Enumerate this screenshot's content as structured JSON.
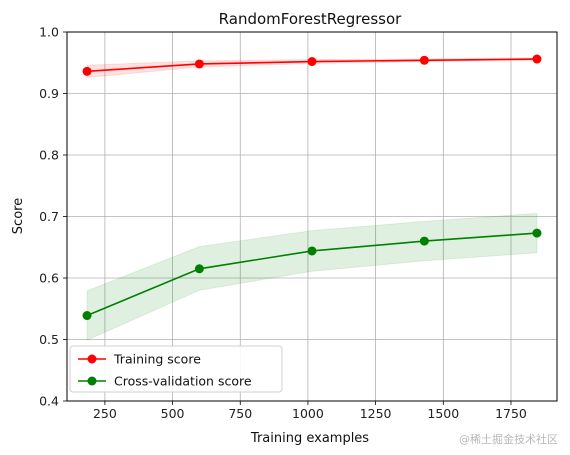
{
  "chart_data": {
    "type": "line",
    "title": "RandomForestRegressor",
    "xlabel": "Training examples",
    "ylabel": "Score",
    "xlim": [
      110,
      1920
    ],
    "ylim": [
      0.4,
      1.0
    ],
    "xticks": [
      250,
      500,
      750,
      1000,
      1250,
      1500,
      1750
    ],
    "yticks": [
      0.4,
      0.5,
      0.6,
      0.7,
      0.8,
      0.9,
      1.0
    ],
    "grid": true,
    "legend_position": "lower-left",
    "x": [
      184,
      599,
      1015,
      1430,
      1846
    ],
    "series": [
      {
        "name": "Training score",
        "color": "#ff0000",
        "fill_color": "#ff0000",
        "values": [
          0.936,
          0.948,
          0.952,
          0.954,
          0.956
        ],
        "band_low": [
          0.926,
          0.943,
          0.949,
          0.952,
          0.954
        ],
        "band_high": [
          0.946,
          0.953,
          0.955,
          0.956,
          0.958
        ]
      },
      {
        "name": "Cross-validation score",
        "color": "#008000",
        "fill_color": "#008000",
        "values": [
          0.539,
          0.615,
          0.644,
          0.66,
          0.673
        ],
        "band_low": [
          0.499,
          0.58,
          0.611,
          0.628,
          0.641
        ],
        "band_high": [
          0.579,
          0.651,
          0.677,
          0.692,
          0.705
        ]
      }
    ]
  },
  "watermark": "@稀土掘金技术社区"
}
